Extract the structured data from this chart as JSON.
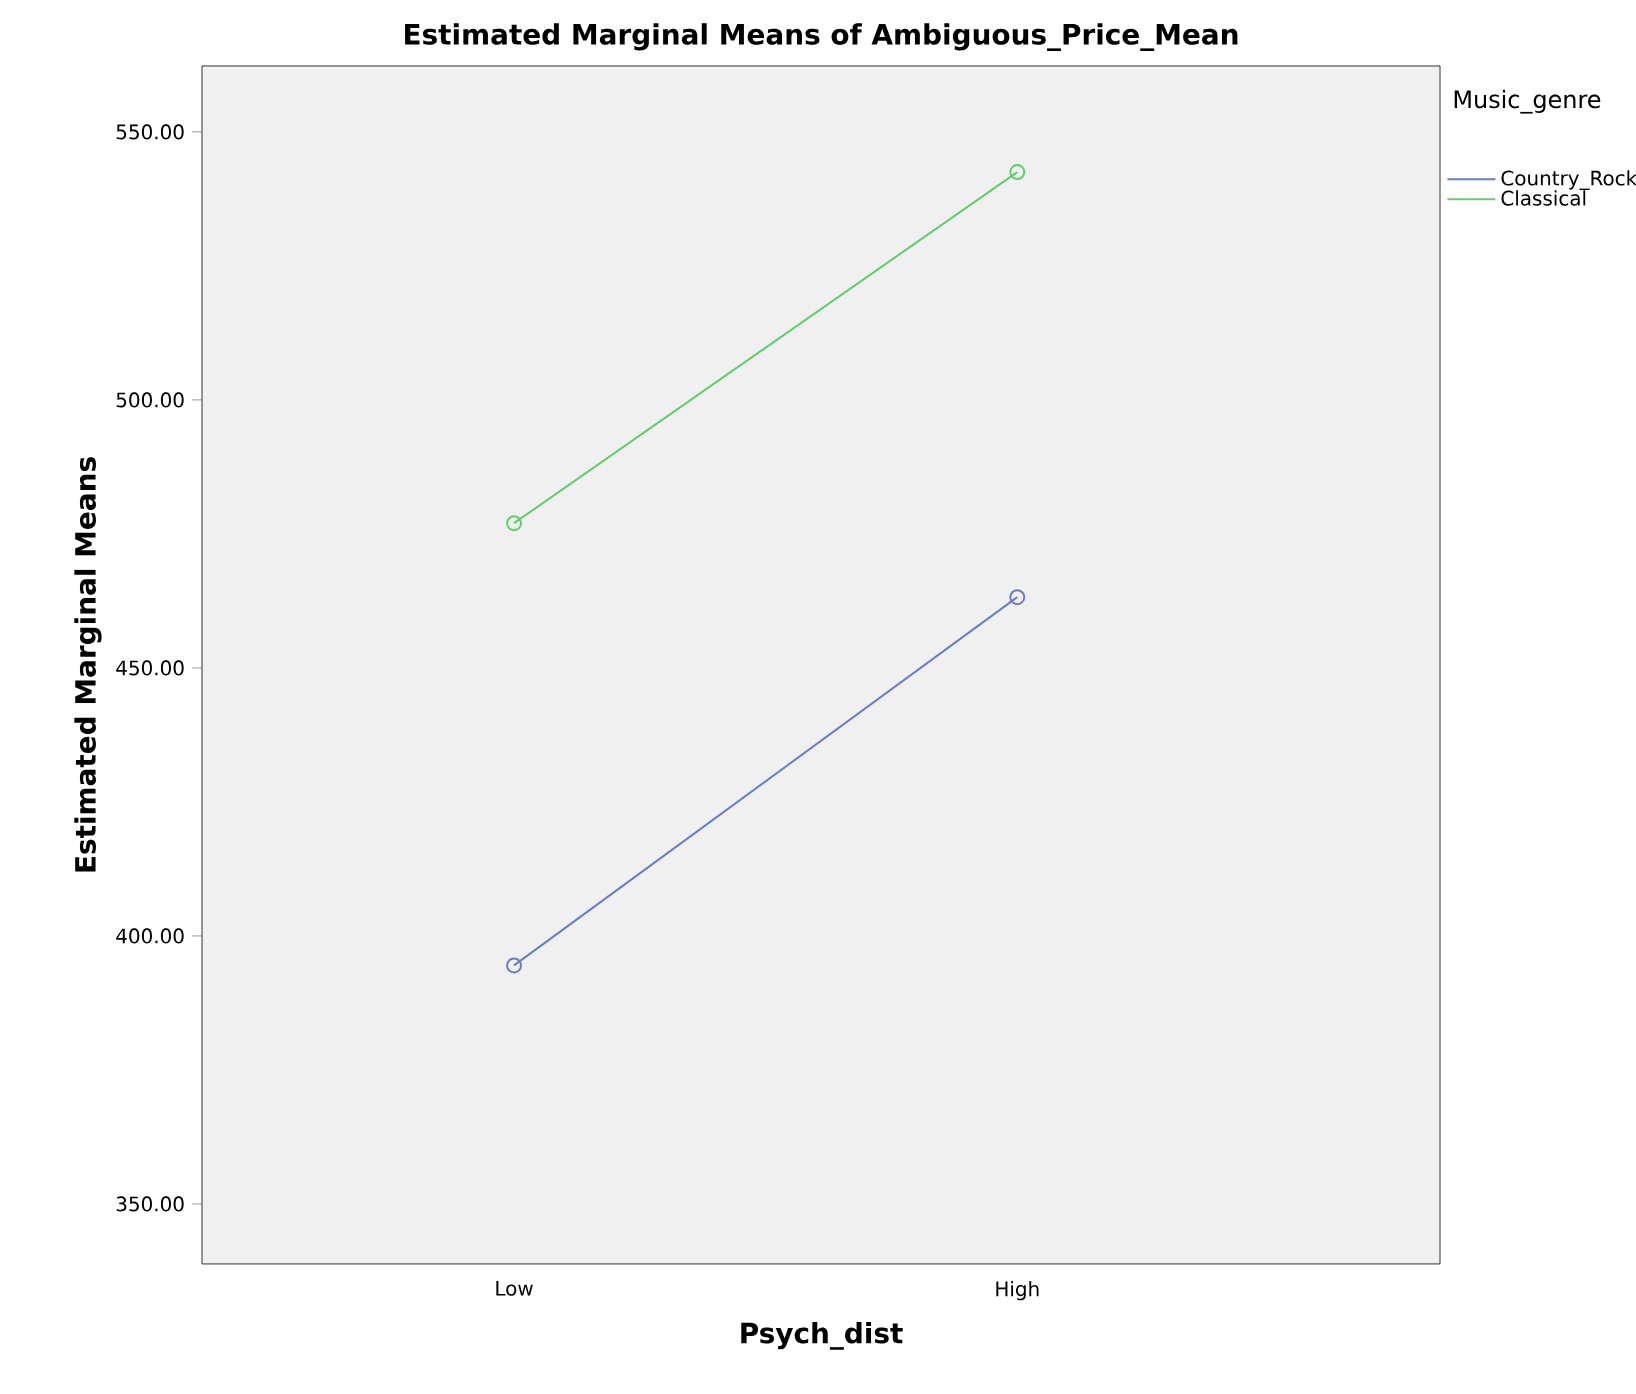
{
  "chart_data": {
    "type": "line",
    "title": "Estimated Marginal Means of Ambiguous_Price_Mean",
    "xlabel": "Psych_dist",
    "ylabel": "Estimated Marginal Means",
    "legend_title": "Music_genre",
    "categories": [
      "Low",
      "High"
    ],
    "series": [
      {
        "name": "Country_Rock",
        "color": "#6a7bc8",
        "values": [
          394.5,
          463.2
        ]
      },
      {
        "name": "Classical",
        "color": "#62cc6c",
        "values": [
          477.0,
          542.5
        ]
      }
    ],
    "ylim": [
      338.8,
      562.3
    ],
    "yticks": [
      {
        "value": 350,
        "label": "350.00"
      },
      {
        "value": 400,
        "label": "400.00"
      },
      {
        "value": 450,
        "label": "450.00"
      },
      {
        "value": 500,
        "label": "500.00"
      },
      {
        "value": 550,
        "label": "550.00"
      }
    ],
    "marker": "circle",
    "line_style": "solid",
    "legend": "top right",
    "grid": false
  }
}
